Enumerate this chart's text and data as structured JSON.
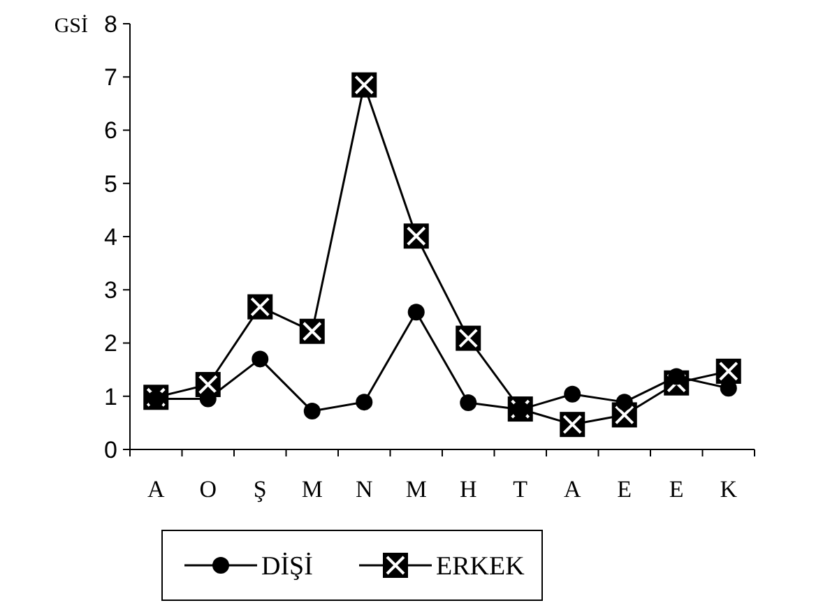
{
  "chart_data": {
    "type": "line",
    "ylabel": "GSİ",
    "categories": [
      "A",
      "O",
      "Ş",
      "M",
      "N",
      "M",
      "H",
      "T",
      "A",
      "E",
      "E",
      "K"
    ],
    "series": [
      {
        "name": "DİŞİ",
        "color": "#000000",
        "marker": "circle",
        "values": [
          0.95,
          0.95,
          1.7,
          0.72,
          0.89,
          2.58,
          0.88,
          0.75,
          1.04,
          0.89,
          1.37,
          1.15
        ]
      },
      {
        "name": "ERKEK",
        "color": "#000000",
        "marker": "square",
        "values": [
          0.98,
          1.22,
          2.68,
          2.22,
          6.85,
          4.01,
          2.09,
          0.76,
          0.47,
          0.65,
          1.25,
          1.47
        ]
      }
    ],
    "ylim": [
      0,
      8
    ],
    "yticks": [
      0,
      1,
      2,
      3,
      4,
      5,
      6,
      7,
      8
    ],
    "legend": "bottom",
    "grid": false,
    "line_style": "solid"
  }
}
